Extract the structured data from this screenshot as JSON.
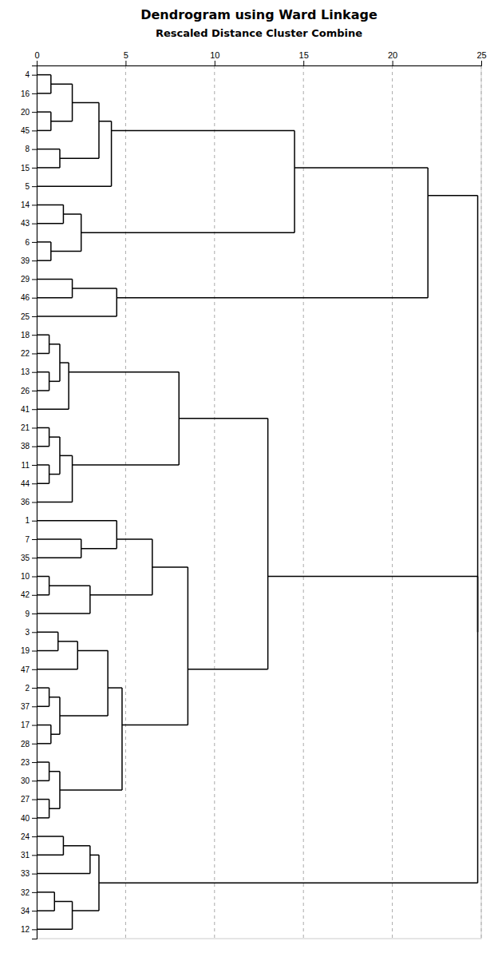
{
  "chart_data": {
    "type": "dendrogram",
    "title": "Dendrogram using Ward Linkage",
    "subtitle": "Rescaled Distance Cluster Combine",
    "categories": [
      4,
      16,
      20,
      45,
      8,
      15,
      5,
      14,
      43,
      6,
      39,
      29,
      46,
      25,
      18,
      22,
      13,
      26,
      41,
      21,
      38,
      11,
      44,
      36,
      1,
      7,
      35,
      10,
      42,
      9,
      3,
      19,
      47,
      2,
      37,
      17,
      28,
      23,
      30,
      27,
      40,
      24,
      31,
      33,
      32,
      34,
      12
    ],
    "xlim": [
      0,
      25
    ],
    "xticks": [
      0,
      5,
      10,
      15,
      20,
      25
    ],
    "grid": true,
    "merges": [
      [
        [
          4
        ],
        [
          16
        ],
        0.8
      ],
      [
        [
          20
        ],
        [
          45
        ],
        0.8
      ],
      [
        [
          4,
          16
        ],
        [
          20,
          45
        ],
        2.0
      ],
      [
        [
          8
        ],
        [
          15
        ],
        1.3
      ],
      [
        [
          4,
          16,
          20,
          45
        ],
        [
          8,
          15
        ],
        3.5
      ],
      [
        [
          14
        ],
        [
          43
        ],
        1.5
      ],
      [
        [
          6
        ],
        [
          39
        ],
        0.8
      ],
      [
        [
          14,
          43
        ],
        [
          6,
          39
        ],
        2.5
      ],
      [
        [
          5
        ],
        [
          4,
          16,
          20,
          45,
          8,
          15
        ],
        4.2
      ],
      [
        [
          5,
          4,
          16,
          20,
          45,
          8,
          15
        ],
        [
          14,
          43,
          6,
          39
        ],
        14.5
      ],
      [
        [
          29
        ],
        [
          46
        ],
        2.0
      ],
      [
        [
          29,
          46
        ],
        [
          25
        ],
        4.5
      ],
      [
        [
          5,
          4,
          16,
          20,
          45,
          8,
          15,
          14,
          43,
          6,
          39
        ],
        [
          29,
          46,
          25
        ],
        22.0
      ],
      [
        [
          18
        ],
        [
          22
        ],
        0.7
      ],
      [
        [
          13
        ],
        [
          26
        ],
        0.7
      ],
      [
        [
          18,
          22
        ],
        [
          13,
          26
        ],
        1.3
      ],
      [
        [
          18,
          22,
          13,
          26
        ],
        [
          41
        ],
        1.8
      ],
      [
        [
          21
        ],
        [
          38
        ],
        0.7
      ],
      [
        [
          11
        ],
        [
          44
        ],
        0.7
      ],
      [
        [
          21,
          38
        ],
        [
          11,
          44
        ],
        1.3
      ],
      [
        [
          21,
          38,
          11,
          44
        ],
        [
          36
        ],
        2.0
      ],
      [
        [
          18,
          22,
          13,
          26,
          41
        ],
        [
          21,
          38,
          11,
          44,
          36
        ],
        8.0
      ],
      [
        [
          7
        ],
        [
          35
        ],
        2.5
      ],
      [
        [
          1
        ],
        [
          7,
          35
        ],
        4.5
      ],
      [
        [
          10
        ],
        [
          42
        ],
        0.7
      ],
      [
        [
          10,
          42
        ],
        [
          9
        ],
        3.0
      ],
      [
        [
          1,
          7,
          35
        ],
        [
          10,
          42,
          9
        ],
        6.5
      ],
      [
        [
          3
        ],
        [
          19
        ],
        1.2
      ],
      [
        [
          3,
          19
        ],
        [
          47
        ],
        2.3
      ],
      [
        [
          2
        ],
        [
          37
        ],
        0.7
      ],
      [
        [
          17
        ],
        [
          28
        ],
        0.8
      ],
      [
        [
          2,
          37
        ],
        [
          17,
          28
        ],
        1.3
      ],
      [
        [
          23
        ],
        [
          30
        ],
        0.7
      ],
      [
        [
          27
        ],
        [
          40
        ],
        0.7
      ],
      [
        [
          23,
          30
        ],
        [
          27,
          40
        ],
        1.3
      ],
      [
        [
          3,
          19,
          47
        ],
        [
          2,
          37,
          17,
          28
        ],
        4.0
      ],
      [
        [
          3,
          19,
          47,
          2,
          37,
          17,
          28
        ],
        [
          23,
          30,
          27,
          40
        ],
        4.8
      ],
      [
        [
          1,
          7,
          35,
          10,
          42,
          9
        ],
        [
          3,
          19,
          47,
          2,
          37,
          17,
          28,
          23,
          30,
          27,
          40
        ],
        8.5
      ],
      [
        [
          18,
          22,
          13,
          26,
          41,
          21,
          38,
          11,
          44,
          36
        ],
        [
          1,
          7,
          35,
          10,
          42,
          9,
          3,
          19,
          47,
          2,
          37,
          17,
          28,
          23,
          30,
          27,
          40
        ],
        13.0
      ],
      [
        [
          24
        ],
        [
          31
        ],
        1.5
      ],
      [
        [
          24,
          31
        ],
        [
          33
        ],
        3.0
      ],
      [
        [
          32
        ],
        [
          34
        ],
        1.0
      ],
      [
        [
          32,
          34
        ],
        [
          12
        ],
        2.0
      ],
      [
        [
          24,
          31,
          33
        ],
        [
          32,
          34,
          12
        ],
        3.5
      ],
      [
        [
          18,
          22,
          13,
          26,
          41,
          21,
          38,
          11,
          44,
          36,
          1,
          7,
          35,
          10,
          42,
          9,
          3,
          19,
          47,
          2,
          37,
          17,
          28,
          23,
          30,
          27,
          40
        ],
        [
          24,
          31,
          33,
          32,
          34,
          12
        ],
        24.8
      ],
      [
        [
          5,
          4,
          16,
          20,
          45,
          8,
          15,
          14,
          43,
          6,
          39,
          29,
          46,
          25
        ],
        [
          18,
          22,
          13,
          26,
          41,
          21,
          38,
          11,
          44,
          36,
          1,
          7,
          35,
          10,
          42,
          9,
          3,
          19,
          47,
          2,
          37,
          17,
          28,
          23,
          30,
          27,
          40,
          24,
          31,
          33,
          32,
          34,
          12
        ],
        24.8
      ]
    ]
  }
}
